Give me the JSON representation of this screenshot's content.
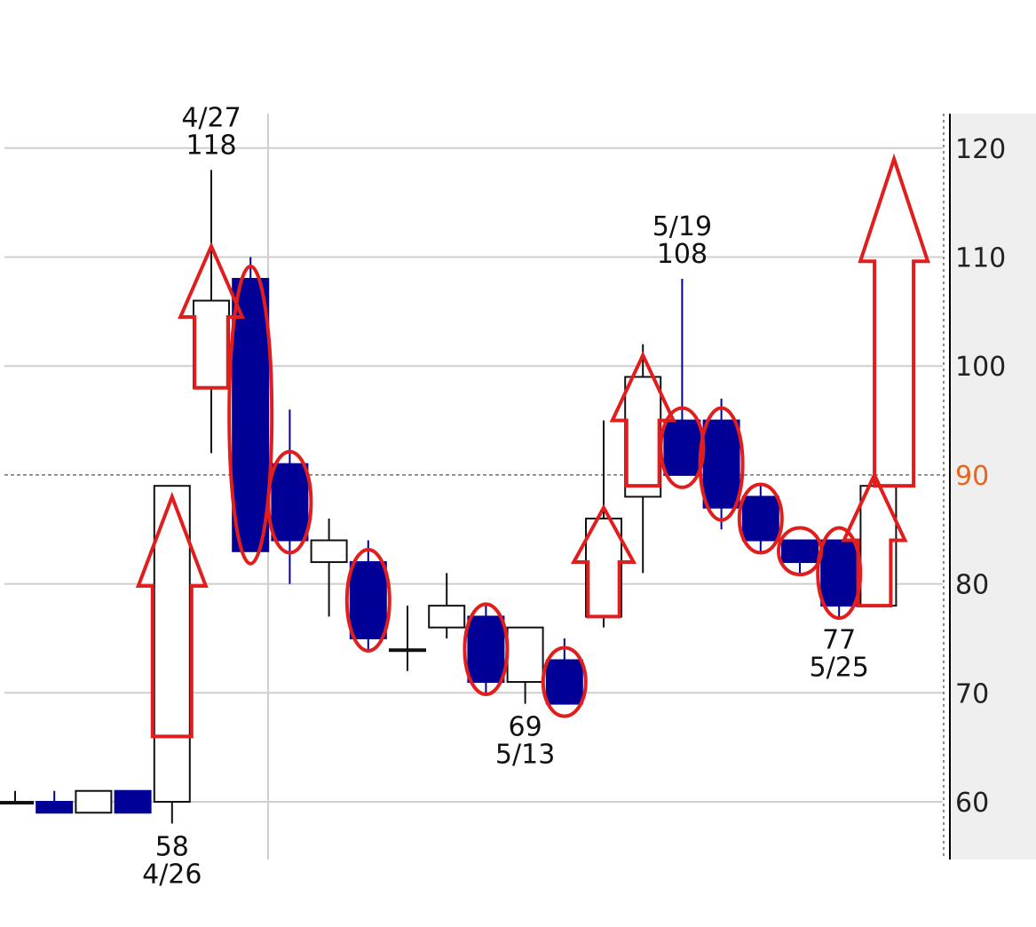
{
  "chart_data": {
    "type": "candlestick",
    "title": "",
    "xlabel": "",
    "ylabel": "",
    "ylim": [
      54,
      124
    ],
    "y_ticks": [
      "60",
      "70",
      "80",
      "90",
      "100",
      "110",
      "120"
    ],
    "reference_line": {
      "value": 90,
      "label": "90",
      "color": "#e8661c"
    },
    "grid": true,
    "bull_color": "#ffffff",
    "bear_color": "#000096",
    "markup_color": "#e11d1d",
    "candles": [
      {
        "open": 60,
        "high": 61,
        "low": 60,
        "close": 60
      },
      {
        "open": 60,
        "high": 61,
        "low": 59,
        "close": 59
      },
      {
        "open": 59,
        "high": 61,
        "low": 59,
        "close": 61
      },
      {
        "open": 61,
        "high": 61,
        "low": 59,
        "close": 59
      },
      {
        "open": 60,
        "high": 89,
        "low": 58,
        "close": 89
      },
      {
        "open": 98,
        "high": 118,
        "low": 92,
        "close": 106
      },
      {
        "open": 108,
        "high": 110,
        "low": 83,
        "close": 83
      },
      {
        "open": 91,
        "high": 96,
        "low": 80,
        "close": 84
      },
      {
        "open": 82,
        "high": 86,
        "low": 77,
        "close": 84
      },
      {
        "open": 82,
        "high": 84,
        "low": 74,
        "close": 75
      },
      {
        "open": 74,
        "high": 78,
        "low": 72,
        "close": 74
      },
      {
        "open": 76,
        "high": 81,
        "low": 75,
        "close": 78
      },
      {
        "open": 77,
        "high": 78,
        "low": 70,
        "close": 71
      },
      {
        "open": 71,
        "high": 76,
        "low": 69,
        "close": 76
      },
      {
        "open": 73,
        "high": 75,
        "low": 69,
        "close": 69
      },
      {
        "open": 77,
        "high": 95,
        "low": 76,
        "close": 86
      },
      {
        "open": 88,
        "high": 102,
        "low": 81,
        "close": 99
      },
      {
        "open": 95,
        "high": 108,
        "low": 90,
        "close": 90
      },
      {
        "open": 95,
        "high": 97,
        "low": 85,
        "close": 87
      },
      {
        "open": 88,
        "high": 89,
        "low": 83,
        "close": 84
      },
      {
        "open": 84,
        "high": 84,
        "low": 81,
        "close": 82
      },
      {
        "open": 84,
        "high": 84,
        "low": 77,
        "close": 78
      },
      {
        "open": 78,
        "high": 89,
        "low": 78,
        "close": 89
      }
    ],
    "annotations": [
      {
        "candle": 5,
        "lines": [
          "4/27",
          "118"
        ],
        "position": "above"
      },
      {
        "candle": 4,
        "lines": [
          "58",
          "4/26"
        ],
        "position": "below"
      },
      {
        "candle": 17,
        "lines": [
          "5/19",
          "108"
        ],
        "position": "above"
      },
      {
        "candle": 13,
        "lines": [
          "69",
          "5/13"
        ],
        "position": "below"
      },
      {
        "candle": 21,
        "lines": [
          "77",
          "5/25"
        ],
        "position": "below"
      }
    ],
    "markup_arrows": [
      {
        "center_candle": 4,
        "from": 66,
        "to": 88
      },
      {
        "center_candle": 5,
        "from": 98,
        "to": 111
      },
      {
        "center_candle": 15,
        "from": 77,
        "to": 87
      },
      {
        "center_candle": 16,
        "from": 89,
        "to": 101
      },
      {
        "center_candle": 21.9,
        "from": 78,
        "to": 90
      },
      {
        "center_candle": 22.4,
        "from": 89,
        "to": 119
      }
    ],
    "markup_ellipses": [
      6,
      7,
      9,
      12,
      14,
      17,
      18,
      19,
      20,
      21
    ]
  }
}
